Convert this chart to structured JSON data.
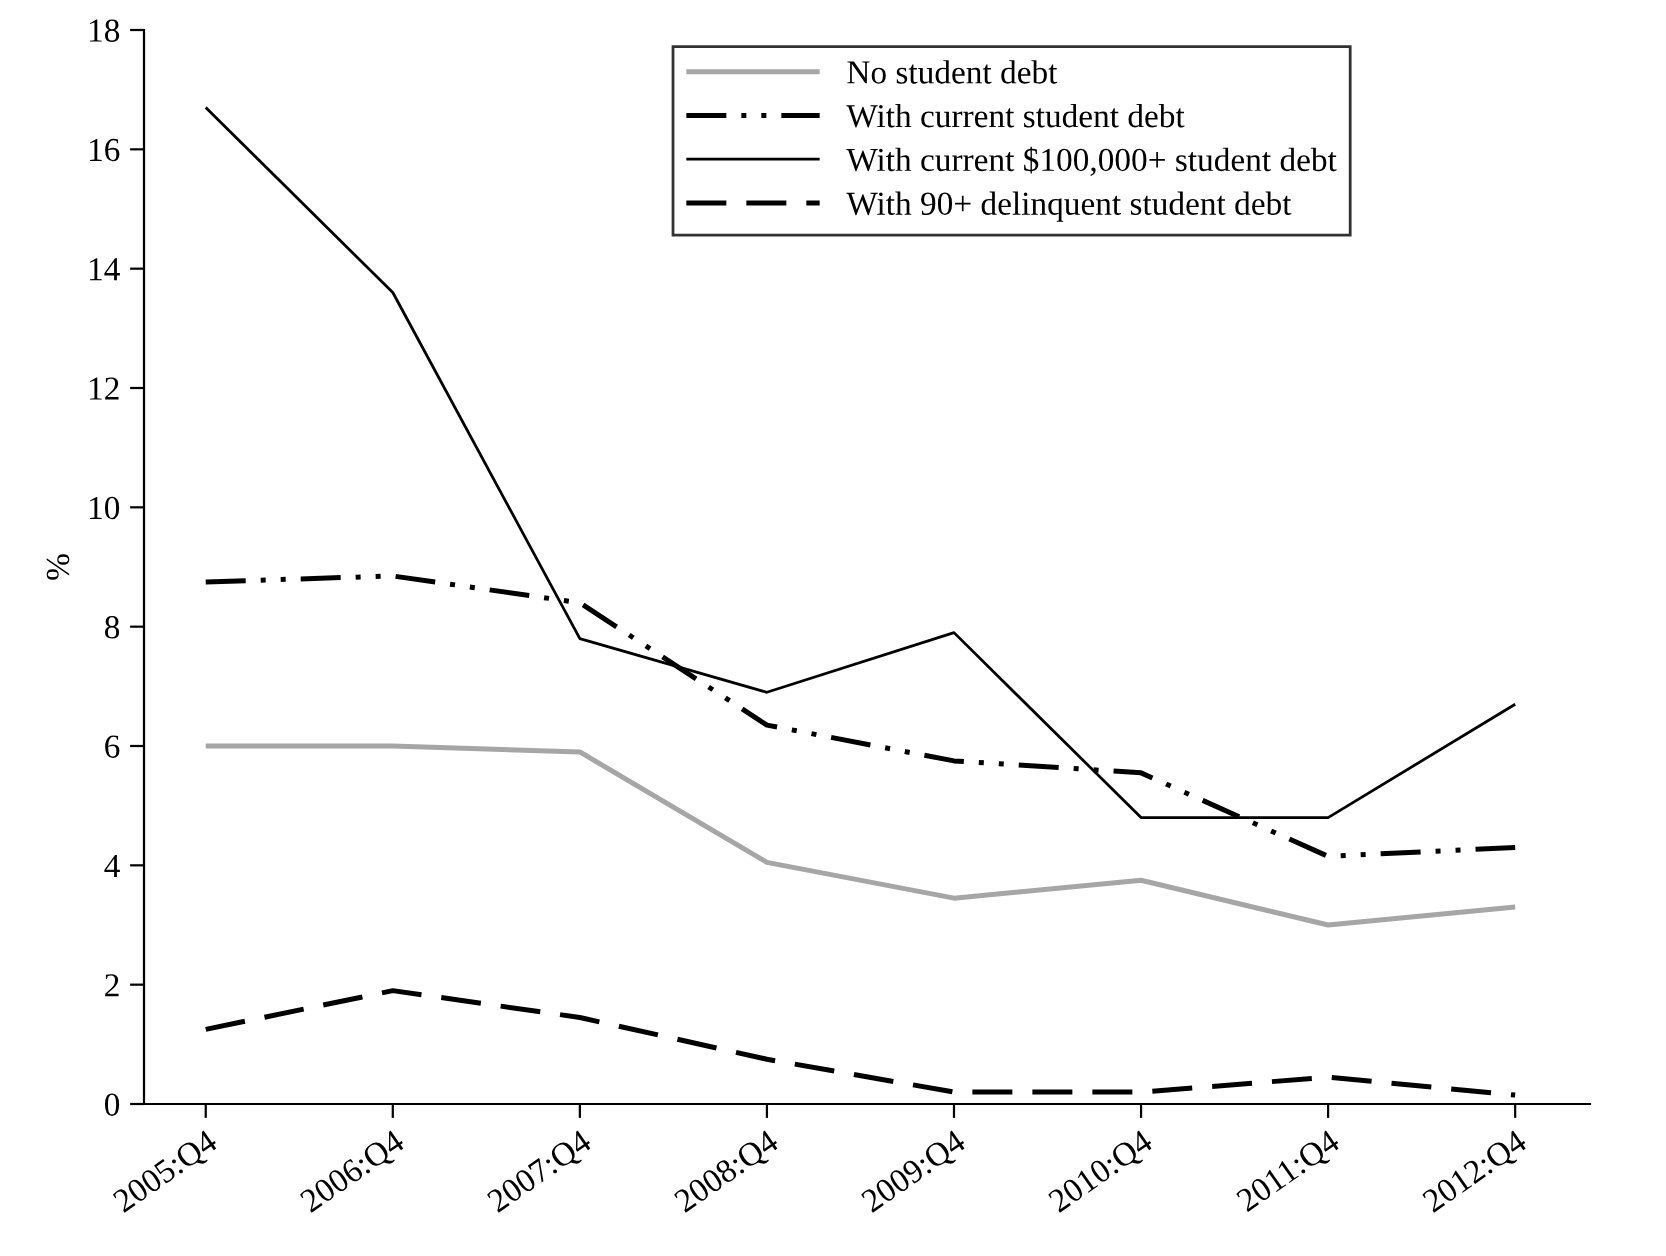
{
  "chart_data": {
    "type": "line",
    "ylabel": "%",
    "categories": [
      "2005:Q4",
      "2006:Q4",
      "2007:Q4",
      "2008:Q4",
      "2009:Q4",
      "2010:Q4",
      "2011:Q4",
      "2012:Q4"
    ],
    "series": [
      {
        "name": "No student debt",
        "color": "#a6a6a6",
        "line_style": "solid",
        "values": [
          6.0,
          6.0,
          5.9,
          4.05,
          3.45,
          3.75,
          3.0,
          3.3
        ]
      },
      {
        "name": "With current student debt",
        "color": "#000000",
        "line_style": "dashdot",
        "values": [
          8.75,
          8.85,
          8.4,
          6.35,
          5.75,
          5.55,
          4.15,
          4.3
        ]
      },
      {
        "name": "With current $100,000+ student debt",
        "color": "#000000",
        "line_style": "solid",
        "values": [
          16.7,
          13.6,
          7.8,
          6.9,
          7.9,
          4.8,
          4.8,
          6.7
        ]
      },
      {
        "name": "With 90+ delinquent student debt",
        "color": "#000000",
        "line_style": "dashed",
        "values": [
          1.25,
          1.9,
          1.45,
          0.75,
          0.2,
          0.2,
          0.45,
          0.15
        ]
      }
    ],
    "ylim": [
      0,
      18
    ],
    "yticks": [
      0,
      2,
      4,
      6,
      8,
      10,
      12,
      14,
      16,
      18
    ],
    "grid": false,
    "legend": "top",
    "marker": "none"
  }
}
